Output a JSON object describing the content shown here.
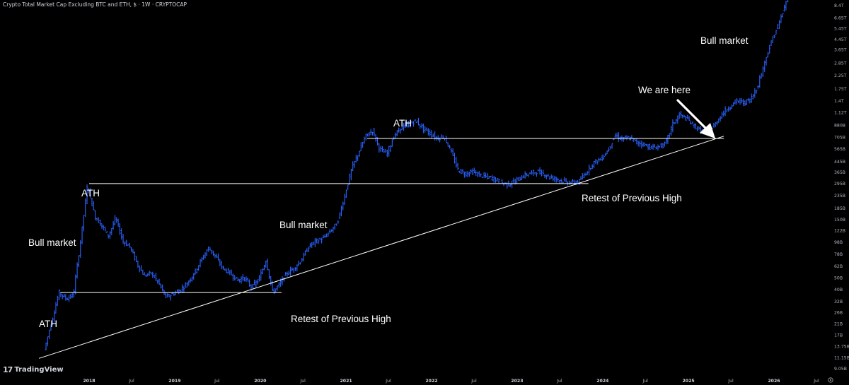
{
  "header": {
    "title": "Crypto Total Market Cap Excluding BTC and ETH, $ · 1W · CRYPTOCAP"
  },
  "branding": {
    "logo_text": "TradingView"
  },
  "colors": {
    "background": "#000000",
    "bars": "#2962ff",
    "lines": "#ffffff",
    "axis_text": "#b2b5be"
  },
  "annotations": {
    "ath_1": "ATH",
    "ath_2": "ATH",
    "ath_3": "ATH",
    "bull_market_1": "Bull market",
    "bull_market_2": "Bull market",
    "bull_market_3": "Bull market",
    "retest_1": "Retest of Previous High",
    "retest_2": "Retest of Previous High",
    "we_are_here": "We are here"
  },
  "chart_data": {
    "type": "ohlc-bar",
    "scale": "log",
    "yunit": "USD market cap",
    "y_ticks": [
      "8.4T",
      "6.65T",
      "5.45T",
      "4.45T",
      "3.65T",
      "2.85T",
      "2.25T",
      "1.75T",
      "1.4T",
      "1.12T",
      "880B",
      "705B",
      "565B",
      "445B",
      "365B",
      "295B",
      "235B",
      "185B",
      "150B",
      "122B",
      "98B",
      "78B",
      "62B",
      "50B",
      "40B",
      "32B",
      "26B",
      "21B",
      "17B",
      "13.75B",
      "11.15B",
      "9.05B"
    ],
    "x_ticks": [
      {
        "label": "2018",
        "year": true
      },
      {
        "label": "Jul",
        "year": false
      },
      {
        "label": "2019",
        "year": true
      },
      {
        "label": "Jul",
        "year": false
      },
      {
        "label": "2020",
        "year": true
      },
      {
        "label": "Jul",
        "year": false
      },
      {
        "label": "2021",
        "year": true
      },
      {
        "label": "Jul",
        "year": false
      },
      {
        "label": "2022",
        "year": true
      },
      {
        "label": "Jul",
        "year": false
      },
      {
        "label": "2023",
        "year": true
      },
      {
        "label": "Jul",
        "year": false
      },
      {
        "label": "2024",
        "year": true
      },
      {
        "label": "Jul",
        "year": false
      },
      {
        "label": "2025",
        "year": true
      },
      {
        "label": "Jul",
        "year": false
      },
      {
        "label": "2026",
        "year": true
      },
      {
        "label": "Jul",
        "year": false
      }
    ],
    "series": [
      {
        "values": [
          [
            "2017-07-01",
            13
          ],
          [
            "2017-08-01",
            22
          ],
          [
            "2017-09-01",
            38
          ],
          [
            "2017-10-01",
            34
          ],
          [
            "2017-11-01",
            36
          ],
          [
            "2017-12-01",
            95
          ],
          [
            "2018-01-01",
            290
          ],
          [
            "2018-02-01",
            160
          ],
          [
            "2018-03-01",
            135
          ],
          [
            "2018-04-01",
            110
          ],
          [
            "2018-05-01",
            155
          ],
          [
            "2018-06-01",
            100
          ],
          [
            "2018-07-01",
            90
          ],
          [
            "2018-08-01",
            65
          ],
          [
            "2018-09-01",
            52
          ],
          [
            "2018-10-01",
            55
          ],
          [
            "2018-11-01",
            45
          ],
          [
            "2018-12-01",
            35
          ],
          [
            "2019-01-01",
            37
          ],
          [
            "2019-02-01",
            40
          ],
          [
            "2019-03-01",
            45
          ],
          [
            "2019-04-01",
            55
          ],
          [
            "2019-05-01",
            70
          ],
          [
            "2019-06-01",
            88
          ],
          [
            "2019-07-01",
            75
          ],
          [
            "2019-08-01",
            60
          ],
          [
            "2019-09-01",
            55
          ],
          [
            "2019-10-01",
            48
          ],
          [
            "2019-11-01",
            50
          ],
          [
            "2019-12-01",
            42
          ],
          [
            "2020-01-01",
            48
          ],
          [
            "2020-02-01",
            70
          ],
          [
            "2020-03-01",
            38
          ],
          [
            "2020-04-01",
            45
          ],
          [
            "2020-05-01",
            55
          ],
          [
            "2020-06-01",
            60
          ],
          [
            "2020-07-01",
            70
          ],
          [
            "2020-08-01",
            90
          ],
          [
            "2020-09-01",
            100
          ],
          [
            "2020-10-01",
            105
          ],
          [
            "2020-11-01",
            120
          ],
          [
            "2020-12-01",
            140
          ],
          [
            "2021-01-01",
            230
          ],
          [
            "2021-02-01",
            390
          ],
          [
            "2021-03-01",
            520
          ],
          [
            "2021-04-01",
            720
          ],
          [
            "2021-05-01",
            800
          ],
          [
            "2021-06-01",
            560
          ],
          [
            "2021-07-01",
            520
          ],
          [
            "2021-08-01",
            720
          ],
          [
            "2021-09-01",
            850
          ],
          [
            "2021-10-01",
            900
          ],
          [
            "2021-11-01",
            960
          ],
          [
            "2021-12-01",
            840
          ],
          [
            "2022-01-01",
            760
          ],
          [
            "2022-02-01",
            690
          ],
          [
            "2022-03-01",
            720
          ],
          [
            "2022-04-01",
            540
          ],
          [
            "2022-05-01",
            380
          ],
          [
            "2022-06-01",
            355
          ],
          [
            "2022-07-01",
            370
          ],
          [
            "2022-08-01",
            345
          ],
          [
            "2022-09-01",
            335
          ],
          [
            "2022-10-01",
            325
          ],
          [
            "2022-11-01",
            300
          ],
          [
            "2022-12-01",
            290
          ],
          [
            "2023-01-01",
            310
          ],
          [
            "2023-02-01",
            340
          ],
          [
            "2023-03-01",
            355
          ],
          [
            "2023-04-01",
            370
          ],
          [
            "2023-05-01",
            355
          ],
          [
            "2023-06-01",
            330
          ],
          [
            "2023-07-01",
            320
          ],
          [
            "2023-08-01",
            305
          ],
          [
            "2023-09-01",
            300
          ],
          [
            "2023-10-01",
            310
          ],
          [
            "2023-11-01",
            370
          ],
          [
            "2023-12-01",
            440
          ],
          [
            "2024-01-01",
            470
          ],
          [
            "2024-02-01",
            560
          ],
          [
            "2024-03-01",
            730
          ],
          [
            "2024-04-01",
            680
          ],
          [
            "2024-05-01",
            700
          ],
          [
            "2024-06-01",
            640
          ],
          [
            "2024-07-01",
            620
          ],
          [
            "2024-08-01",
            580
          ],
          [
            "2024-09-01",
            590
          ],
          [
            "2024-10-01",
            620
          ],
          [
            "2024-11-01",
            900
          ],
          [
            "2024-12-01",
            1080
          ],
          [
            "2025-01-01",
            1000
          ],
          [
            "2025-02-01",
            880
          ],
          [
            "2025-03-01",
            790
          ],
          [
            "2025-04-01",
            760
          ],
          [
            "2025-05-01",
            900
          ],
          [
            "2025-06-01",
            1100
          ],
          [
            "2025-07-01",
            1250
          ],
          [
            "2025-08-01",
            1400
          ],
          [
            "2025-09-01",
            1350
          ],
          [
            "2025-10-01",
            1450
          ],
          [
            "2025-11-01",
            1900
          ],
          [
            "2025-12-01",
            3000
          ],
          [
            "2026-01-01",
            4500
          ],
          [
            "2026-02-01",
            6200
          ],
          [
            "2026-03-01",
            9000
          ]
        ]
      }
    ],
    "horizontal_lines": [
      {
        "y": 38,
        "x_start": "2017-09-01",
        "x_end": "2020-04-01"
      },
      {
        "y": 295,
        "x_start": "2018-01-01",
        "x_end": "2023-11-01"
      },
      {
        "y": 690,
        "x_start": "2021-04-01",
        "x_end": "2025-06-01"
      }
    ],
    "trendline": {
      "start": [
        "2017-06-01",
        11
      ],
      "end": [
        "2025-06-01",
        720
      ]
    }
  }
}
